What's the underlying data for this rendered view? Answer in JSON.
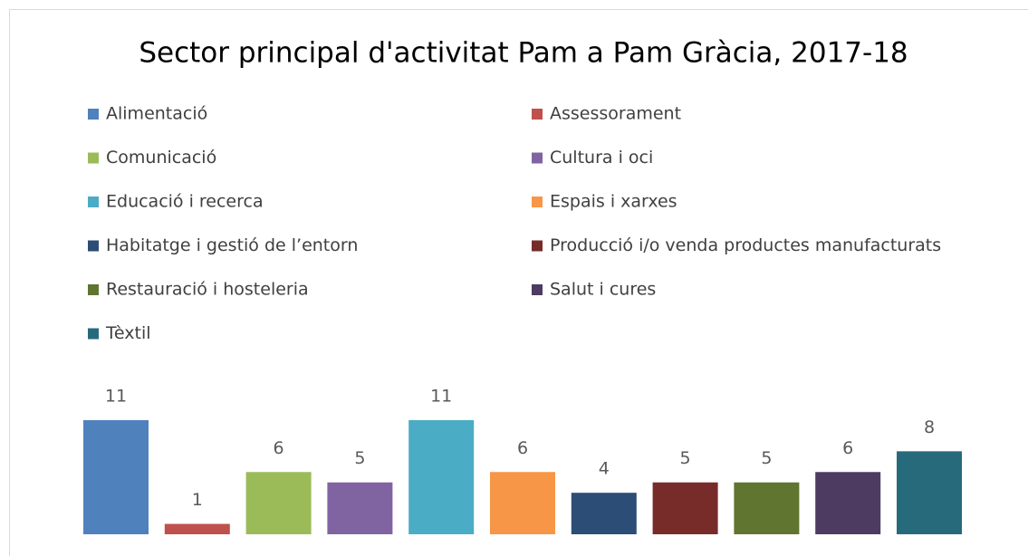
{
  "chart_data": {
    "type": "bar",
    "title": "Sector principal d'activitat Pam a Pam Gràcia, 2017-18",
    "categories": [
      "Alimentació",
      "Assessorament",
      "Comunicació",
      "Cultura i oci",
      "Educació i recerca",
      "Espais i xarxes",
      "Habitatge i gestió de l’entorn",
      "Producció i/o venda productes manufacturats",
      "Restauració i hosteleria",
      "Salut i cures",
      "Tèxtil"
    ],
    "values": [
      11,
      1,
      6,
      5,
      11,
      6,
      4,
      5,
      5,
      6,
      8
    ],
    "colors": [
      "#4f81bd",
      "#c0504d",
      "#9bbb59",
      "#8064a2",
      "#4bacc6",
      "#f79646",
      "#2c4d75",
      "#772c2a",
      "#5f7530",
      "#4d3b62",
      "#276a7c"
    ],
    "legend": "top"
  }
}
